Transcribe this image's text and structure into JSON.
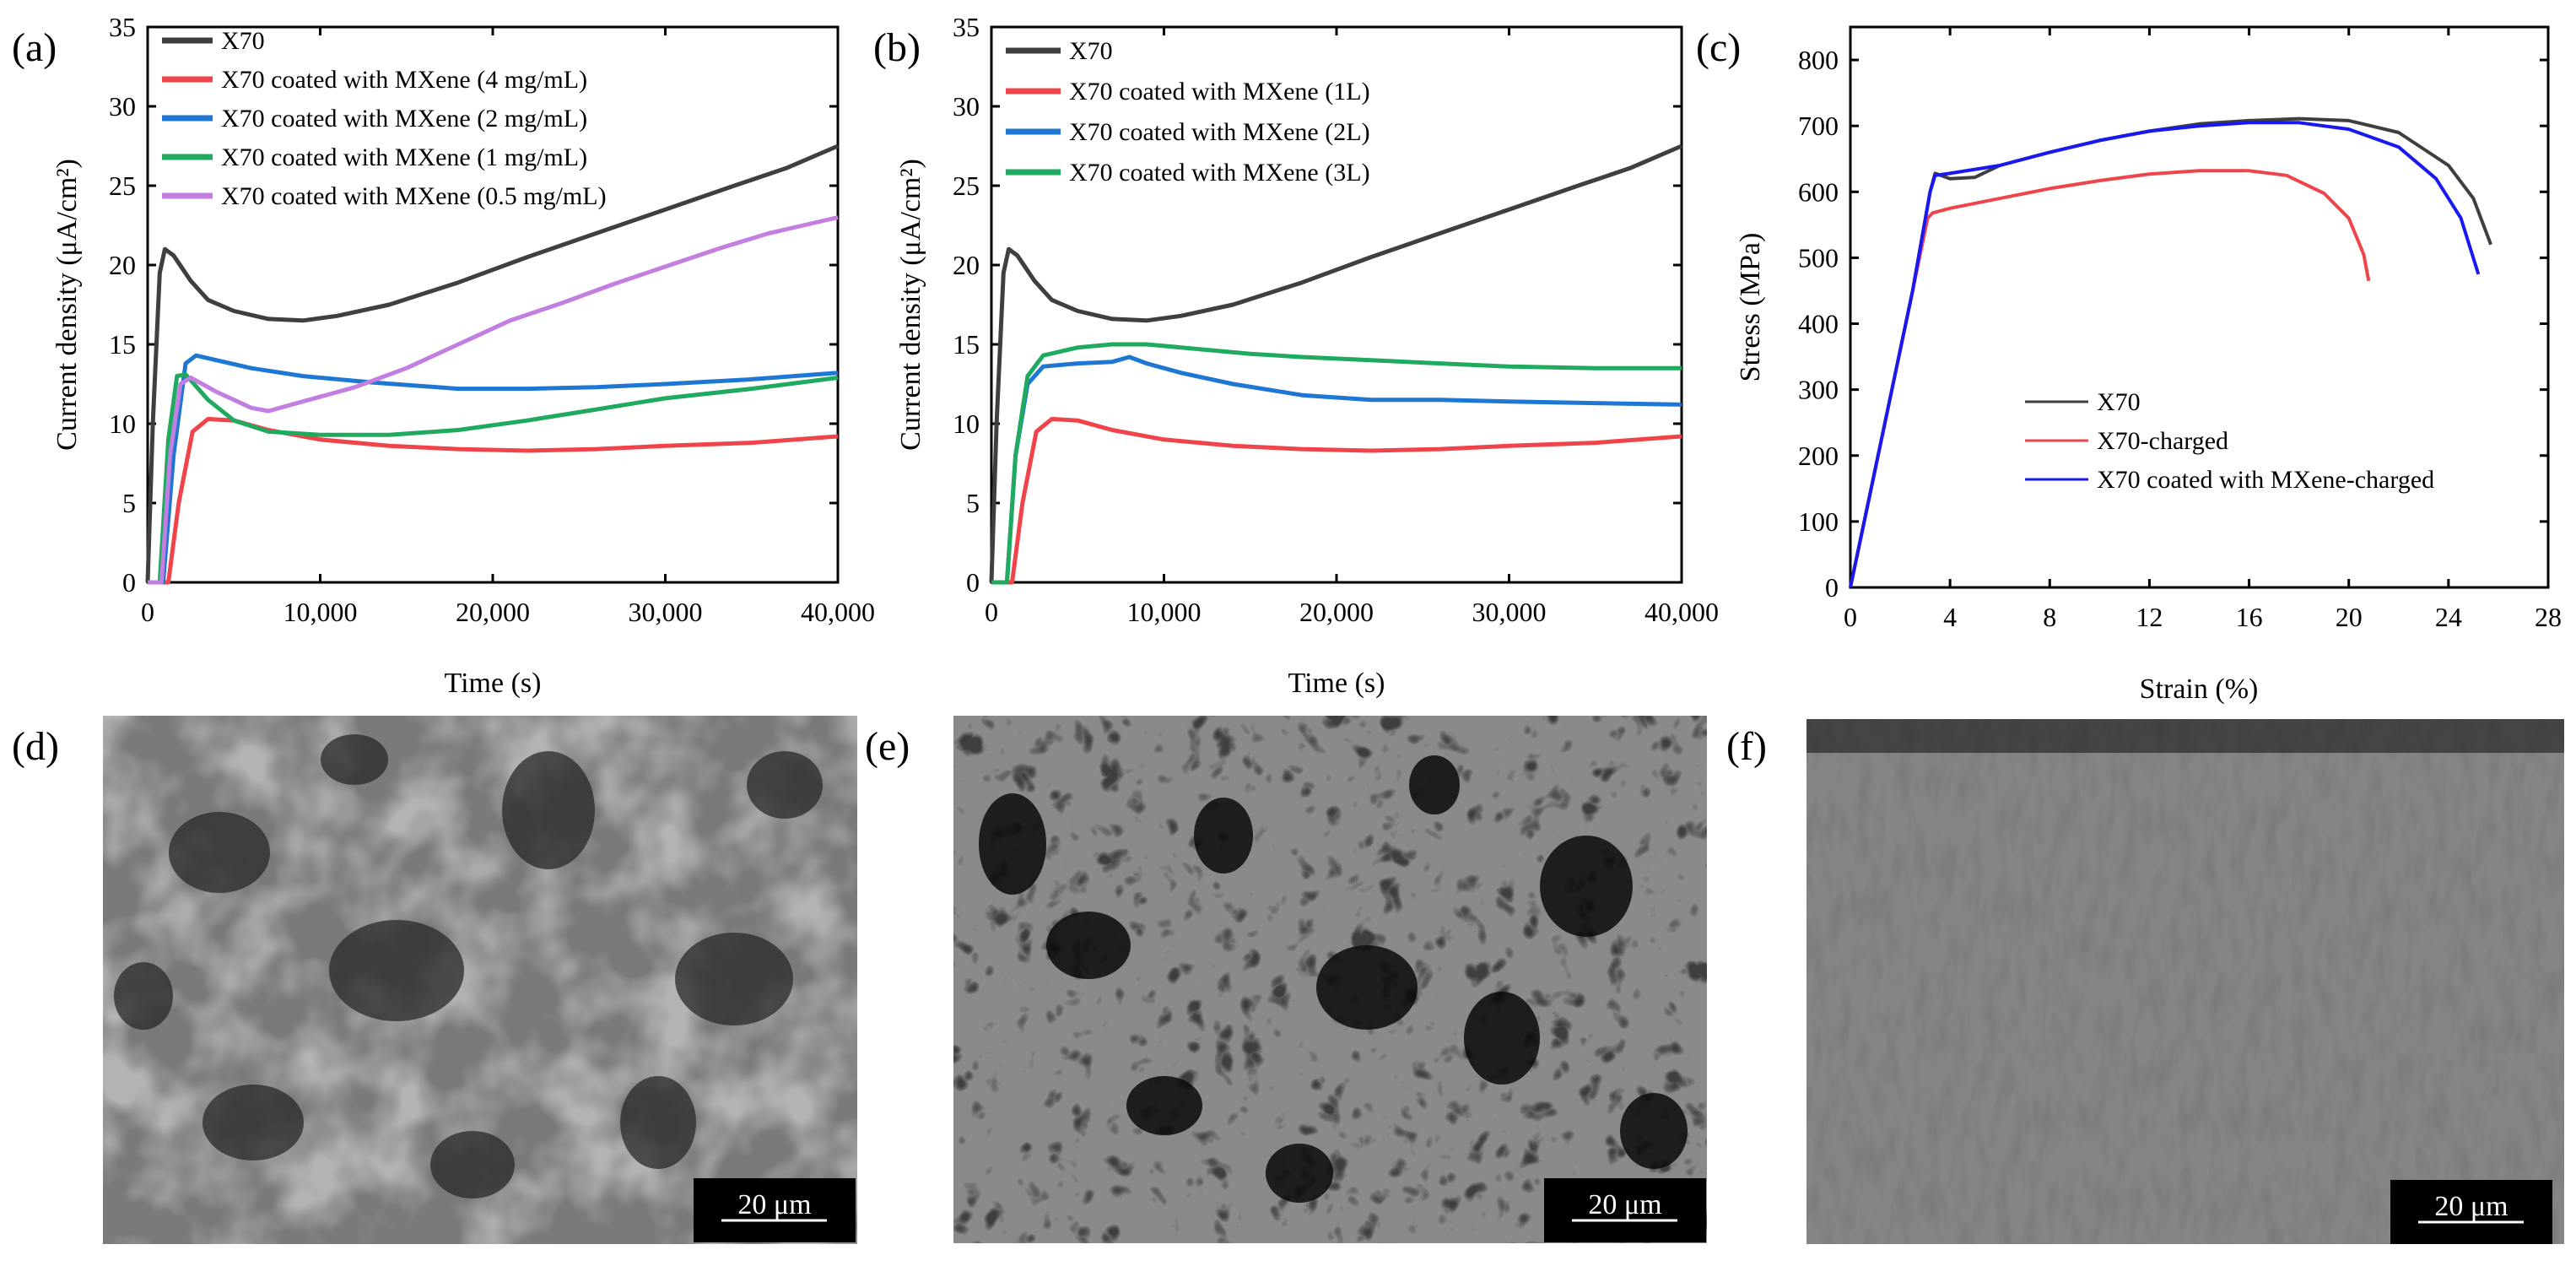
{
  "colors": {
    "series_dark": "#3f3f3f",
    "series_red": "#f0444b",
    "series_blue": "#1f77d4",
    "series_green": "#1faa5f",
    "series_violet": "#c27ee0",
    "series_blue_c": "#1818f0"
  },
  "chart_data": [
    {
      "panel": "(a)",
      "type": "line",
      "xlabel": "Time (s)",
      "ylabel": "Current density (μA/cm²)",
      "xlim": [
        0,
        40000
      ],
      "ylim": [
        0,
        35
      ],
      "xticks": [
        0,
        10000,
        20000,
        30000,
        40000
      ],
      "xtick_labels": [
        "0",
        "10,000",
        "20,000",
        "30,000",
        "40,000"
      ],
      "yticks": [
        0,
        5,
        10,
        15,
        20,
        25,
        30,
        35
      ],
      "ytick_labels": [
        "0",
        "5",
        "10",
        "15",
        "20",
        "25",
        "30",
        "35"
      ],
      "legend_position": "top-left",
      "series": [
        {
          "name": "X70",
          "color": "#3f3f3f",
          "points": [
            [
              0,
              0
            ],
            [
              300,
              10
            ],
            [
              700,
              19.5
            ],
            [
              1000,
              21
            ],
            [
              1500,
              20.6
            ],
            [
              2500,
              19
            ],
            [
              3500,
              17.8
            ],
            [
              5000,
              17.1
            ],
            [
              7000,
              16.6
            ],
            [
              9000,
              16.5
            ],
            [
              11000,
              16.8
            ],
            [
              14000,
              17.5
            ],
            [
              18000,
              18.9
            ],
            [
              22000,
              20.5
            ],
            [
              26000,
              22
            ],
            [
              30000,
              23.5
            ],
            [
              34000,
              25
            ],
            [
              37000,
              26.1
            ],
            [
              40000,
              27.5
            ]
          ]
        },
        {
          "name": "X70 coated with MXene (4 mg/mL)",
          "color": "#f0444b",
          "points": [
            [
              0,
              0
            ],
            [
              1200,
              0
            ],
            [
              1800,
              5
            ],
            [
              2600,
              9.5
            ],
            [
              3500,
              10.3
            ],
            [
              5000,
              10.2
            ],
            [
              7000,
              9.6
            ],
            [
              10000,
              9
            ],
            [
              14000,
              8.6
            ],
            [
              18000,
              8.4
            ],
            [
              22000,
              8.3
            ],
            [
              26000,
              8.4
            ],
            [
              30000,
              8.6
            ],
            [
              35000,
              8.8
            ],
            [
              40000,
              9.2
            ]
          ]
        },
        {
          "name": "X70 coated with MXene (2 mg/mL)",
          "color": "#1f77d4",
          "points": [
            [
              0,
              0
            ],
            [
              900,
              0
            ],
            [
              1500,
              8
            ],
            [
              2200,
              13.8
            ],
            [
              2800,
              14.3
            ],
            [
              4000,
              14
            ],
            [
              6000,
              13.5
            ],
            [
              9000,
              13
            ],
            [
              13000,
              12.6
            ],
            [
              18000,
              12.2
            ],
            [
              22000,
              12.2
            ],
            [
              26000,
              12.3
            ],
            [
              30000,
              12.5
            ],
            [
              35000,
              12.8
            ],
            [
              40000,
              13.2
            ]
          ]
        },
        {
          "name": "X70 coated with MXene (1 mg/mL)",
          "color": "#1faa5f",
          "points": [
            [
              0,
              0
            ],
            [
              700,
              0
            ],
            [
              1200,
              9
            ],
            [
              1700,
              13
            ],
            [
              2200,
              13.1
            ],
            [
              3500,
              11.5
            ],
            [
              5000,
              10.2
            ],
            [
              7000,
              9.5
            ],
            [
              10000,
              9.3
            ],
            [
              14000,
              9.3
            ],
            [
              18000,
              9.6
            ],
            [
              22000,
              10.2
            ],
            [
              26000,
              10.9
            ],
            [
              30000,
              11.6
            ],
            [
              35000,
              12.2
            ],
            [
              40000,
              12.9
            ]
          ]
        },
        {
          "name": "X70 coated with MXene (0.5 mg/mL)",
          "color": "#c27ee0",
          "points": [
            [
              0,
              0
            ],
            [
              800,
              0
            ],
            [
              1300,
              8
            ],
            [
              1900,
              12.5
            ],
            [
              2500,
              12.9
            ],
            [
              4000,
              12
            ],
            [
              6000,
              11
            ],
            [
              7000,
              10.8
            ],
            [
              9000,
              11.4
            ],
            [
              12000,
              12.3
            ],
            [
              15000,
              13.5
            ],
            [
              18000,
              15
            ],
            [
              21000,
              16.5
            ],
            [
              24000,
              17.6
            ],
            [
              27000,
              18.8
            ],
            [
              30000,
              19.9
            ],
            [
              33000,
              21
            ],
            [
              36000,
              22
            ],
            [
              38000,
              22.5
            ],
            [
              40000,
              23
            ]
          ]
        }
      ],
      "legend": [
        "X70",
        "X70 coated with MXene (4 mg/mL)",
        "X70 coated with MXene (2 mg/mL)",
        "X70 coated with MXene (1 mg/mL)",
        "X70 coated with MXene (0.5 mg/mL)"
      ]
    },
    {
      "panel": "(b)",
      "type": "line",
      "xlabel": "Time (s)",
      "ylabel": "Current density (μA/cm²)",
      "xlim": [
        0,
        40000
      ],
      "ylim": [
        0,
        35
      ],
      "xticks": [
        0,
        10000,
        20000,
        30000,
        40000
      ],
      "xtick_labels": [
        "0",
        "10,000",
        "20,000",
        "30,000",
        "40,000"
      ],
      "yticks": [
        0,
        5,
        10,
        15,
        20,
        25,
        30,
        35
      ],
      "ytick_labels": [
        "0",
        "5",
        "10",
        "15",
        "20",
        "25",
        "30",
        "35"
      ],
      "legend_position": "top-left",
      "series": [
        {
          "name": "X70",
          "color": "#3f3f3f",
          "points": [
            [
              0,
              0
            ],
            [
              300,
              10
            ],
            [
              700,
              19.5
            ],
            [
              1000,
              21
            ],
            [
              1500,
              20.6
            ],
            [
              2500,
              19
            ],
            [
              3500,
              17.8
            ],
            [
              5000,
              17.1
            ],
            [
              7000,
              16.6
            ],
            [
              9000,
              16.5
            ],
            [
              11000,
              16.8
            ],
            [
              14000,
              17.5
            ],
            [
              18000,
              18.9
            ],
            [
              22000,
              20.5
            ],
            [
              26000,
              22
            ],
            [
              30000,
              23.5
            ],
            [
              34000,
              25
            ],
            [
              37000,
              26.1
            ],
            [
              40000,
              27.5
            ]
          ]
        },
        {
          "name": "X70 coated with MXene (1L)",
          "color": "#f0444b",
          "points": [
            [
              0,
              0
            ],
            [
              1200,
              0
            ],
            [
              1800,
              5
            ],
            [
              2600,
              9.5
            ],
            [
              3500,
              10.3
            ],
            [
              5000,
              10.2
            ],
            [
              7000,
              9.6
            ],
            [
              10000,
              9
            ],
            [
              14000,
              8.6
            ],
            [
              18000,
              8.4
            ],
            [
              22000,
              8.3
            ],
            [
              26000,
              8.4
            ],
            [
              30000,
              8.6
            ],
            [
              35000,
              8.8
            ],
            [
              40000,
              9.2
            ]
          ]
        },
        {
          "name": "X70 coated with MXene (2L)",
          "color": "#1f77d4",
          "points": [
            [
              0,
              0
            ],
            [
              900,
              0
            ],
            [
              1400,
              8
            ],
            [
              2100,
              12.5
            ],
            [
              3000,
              13.6
            ],
            [
              5000,
              13.8
            ],
            [
              7000,
              13.9
            ],
            [
              8000,
              14.2
            ],
            [
              9000,
              13.8
            ],
            [
              11000,
              13.2
            ],
            [
              14000,
              12.5
            ],
            [
              18000,
              11.8
            ],
            [
              22000,
              11.5
            ],
            [
              26000,
              11.5
            ],
            [
              30000,
              11.4
            ],
            [
              35000,
              11.3
            ],
            [
              40000,
              11.2
            ]
          ]
        },
        {
          "name": "X70 coated with MXene (3L)",
          "color": "#1faa5f",
          "points": [
            [
              0,
              0
            ],
            [
              900,
              0
            ],
            [
              1400,
              8
            ],
            [
              2100,
              13
            ],
            [
              3000,
              14.3
            ],
            [
              5000,
              14.8
            ],
            [
              7000,
              15
            ],
            [
              9000,
              15
            ],
            [
              12000,
              14.7
            ],
            [
              15000,
              14.4
            ],
            [
              18000,
              14.2
            ],
            [
              22000,
              14
            ],
            [
              26000,
              13.8
            ],
            [
              30000,
              13.6
            ],
            [
              35000,
              13.5
            ],
            [
              40000,
              13.5
            ]
          ]
        }
      ],
      "legend": [
        "X70",
        "X70 coated with MXene (1L)",
        "X70 coated with MXene (2L)",
        "X70 coated with MXene (3L)"
      ]
    },
    {
      "panel": "(c)",
      "type": "line",
      "xlabel": "Strain (%)",
      "ylabel": "Stress (MPa)",
      "xlim": [
        0,
        28
      ],
      "ylim": [
        0,
        850
      ],
      "xticks": [
        0,
        4,
        8,
        12,
        16,
        20,
        24,
        28
      ],
      "xtick_labels": [
        "0",
        "4",
        "8",
        "12",
        "16",
        "20",
        "24",
        "28"
      ],
      "yticks": [
        0,
        100,
        200,
        300,
        400,
        500,
        600,
        700,
        800
      ],
      "ytick_labels": [
        "0",
        "100",
        "200",
        "300",
        "400",
        "500",
        "600",
        "700",
        "800"
      ],
      "legend_position": "bottom-center",
      "series": [
        {
          "name": "X70",
          "color": "#3f3f3f",
          "points": [
            [
              0,
              0
            ],
            [
              0.5,
              90
            ],
            [
              1.5,
              270
            ],
            [
              2.5,
              450
            ],
            [
              3.2,
              600
            ],
            [
              3.4,
              628
            ],
            [
              4,
              620
            ],
            [
              5,
              622
            ],
            [
              6,
              640
            ],
            [
              8,
              660
            ],
            [
              10,
              678
            ],
            [
              12,
              692
            ],
            [
              14,
              703
            ],
            [
              16,
              708
            ],
            [
              18,
              711
            ],
            [
              20,
              708
            ],
            [
              22,
              690
            ],
            [
              24,
              640
            ],
            [
              25,
              590
            ],
            [
              25.7,
              520
            ]
          ]
        },
        {
          "name": "X70-charged",
          "color": "#f0444b",
          "points": [
            [
              0,
              0
            ],
            [
              0.5,
              90
            ],
            [
              1.5,
              270
            ],
            [
              2.5,
              450
            ],
            [
              3.1,
              560
            ],
            [
              3.3,
              568
            ],
            [
              4,
              575
            ],
            [
              6,
              590
            ],
            [
              8,
              605
            ],
            [
              10,
              617
            ],
            [
              12,
              627
            ],
            [
              14,
              632
            ],
            [
              16,
              632
            ],
            [
              17.5,
              625
            ],
            [
              19,
              598
            ],
            [
              20,
              560
            ],
            [
              20.6,
              505
            ],
            [
              20.8,
              465
            ]
          ]
        },
        {
          "name": "X70 coated with MXene-charged",
          "color": "#1818f0",
          "points": [
            [
              0,
              0
            ],
            [
              0.5,
              90
            ],
            [
              1.5,
              270
            ],
            [
              2.5,
              450
            ],
            [
              3.2,
              600
            ],
            [
              3.4,
              625
            ],
            [
              4,
              628
            ],
            [
              6,
              640
            ],
            [
              8,
              660
            ],
            [
              10,
              678
            ],
            [
              12,
              692
            ],
            [
              14,
              700
            ],
            [
              16,
              705
            ],
            [
              18,
              705
            ],
            [
              20,
              695
            ],
            [
              22,
              668
            ],
            [
              23.5,
              620
            ],
            [
              24.5,
              560
            ],
            [
              25.2,
              475
            ]
          ]
        }
      ],
      "legend": [
        "X70",
        "X70-charged",
        "X70 coated with MXene-charged"
      ]
    }
  ],
  "images": [
    {
      "panel": "(d)",
      "scale_bar": "20 μm"
    },
    {
      "panel": "(e)",
      "scale_bar": "20 μm"
    },
    {
      "panel": "(f)",
      "scale_bar": "20 μm"
    }
  ]
}
